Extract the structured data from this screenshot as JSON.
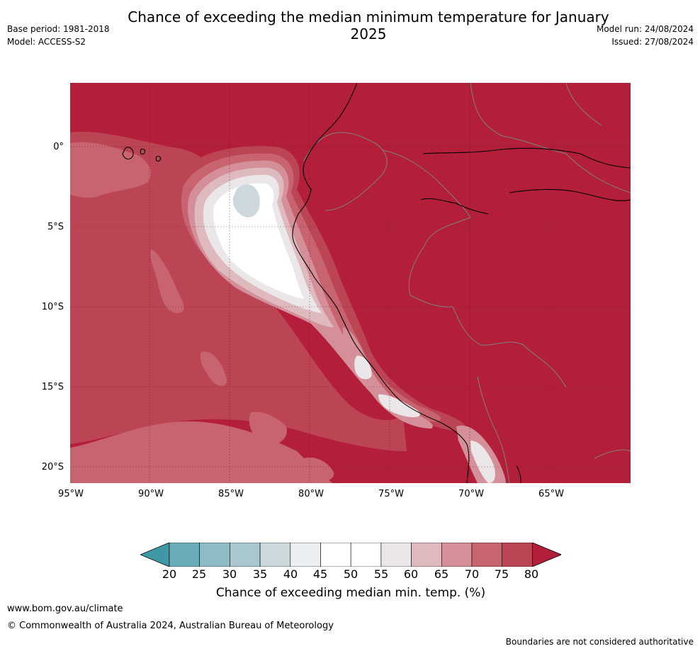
{
  "title": "Chance of exceeding the median minimum temperature for January 2025",
  "meta_left": {
    "base_period": "Base period: 1981-2018",
    "model": "Model: ACCESS-S2"
  },
  "meta_right": {
    "model_run": "Model run: 24/08/2024",
    "issued": "Issued: 27/08/2024"
  },
  "map": {
    "lat_labels": [
      "0°",
      "5°S",
      "10°S",
      "15°S",
      "20°S"
    ],
    "lon_labels": [
      "95°W",
      "90°W",
      "85°W",
      "80°W",
      "75°W",
      "70°W",
      "65°W"
    ],
    "background_color": "#b31e3a"
  },
  "colorbar": {
    "ticks": [
      "20",
      "25",
      "30",
      "35",
      "40",
      "45",
      "50",
      "55",
      "60",
      "65",
      "70",
      "75",
      "80"
    ],
    "colors": [
      "#3f98a6",
      "#6aadba",
      "#8dbcc5",
      "#a9c8cd",
      "#ccd8db",
      "#eaeff1",
      "#ffffff",
      "#ffffff",
      "#ebe6e7",
      "#debabf",
      "#d48f98",
      "#c86470",
      "#bc4555",
      "#b31e3a"
    ],
    "label": "Chance of exceeding median min. temp. (%)"
  },
  "footer": {
    "url": "www.bom.gov.au/climate",
    "copyright": "© Commonwealth of Australia 2024, Australian Bureau of Meteorology",
    "disclaimer": "Boundaries are not considered authoritative"
  }
}
